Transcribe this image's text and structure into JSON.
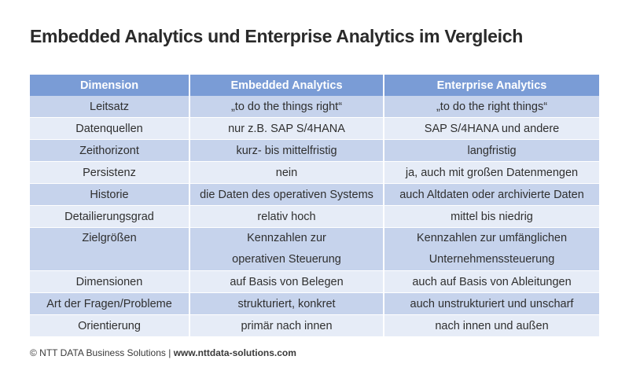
{
  "title": "Embedded Analytics und Enterprise Analytics im Vergleich",
  "table": {
    "headers": [
      "Dimension",
      "Embedded Analytics",
      "Enterprise Analytics"
    ],
    "rows": [
      [
        "Leitsatz",
        "„to do the things right“",
        "„to do the right things“"
      ],
      [
        "Datenquellen",
        "nur z.B. SAP S/4HANA",
        "SAP S/4HANA und andere"
      ],
      [
        "Zeithorizont",
        "kurz- bis mittelfristig",
        "langfristig"
      ],
      [
        "Persistenz",
        "nein",
        "ja, auch mit großen Datenmengen"
      ],
      [
        "Historie",
        "die Daten des operativen Systems",
        "auch Altdaten oder archivierte Daten"
      ],
      [
        "Detailierungsgrad",
        "relativ hoch",
        "mittel bis niedrig"
      ],
      [
        "Zielgrößen",
        "Kennzahlen zur operativen Steuerung",
        "Kennzahlen zur umfänglichen Unternehmenssteuerung"
      ],
      [
        "Dimensionen",
        "auf Basis von Belegen",
        "auch auf Basis von Ableitungen"
      ],
      [
        "Art der Fragen/Probleme",
        "strukturiert, konkret",
        "auch unstrukturiert und unscharf"
      ],
      [
        "Orientierung",
        "primär nach innen",
        "nach innen und außen"
      ]
    ],
    "zielgroessen_lines": {
      "embedded": [
        "Kennzahlen zur",
        "operativen Steuerung"
      ],
      "enterprise": [
        "Kennzahlen zur umfänglichen",
        "Unternehmenssteuerung"
      ]
    }
  },
  "footer": {
    "copyright": "© NTT DATA Business Solutions | ",
    "url": "www.nttdata-solutions.com"
  },
  "colors": {
    "header_bg": "#7a9cd6",
    "row_dark": "#c6d3ec",
    "row_light": "#e6ecf7"
  }
}
